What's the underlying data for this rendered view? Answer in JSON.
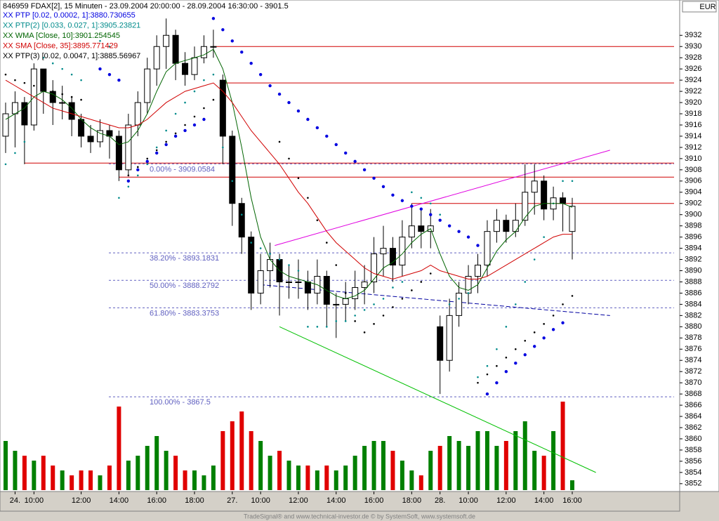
{
  "chart_data": {
    "type": "candlestick",
    "title": "846959 FDAX[2], 15 Minuten - 23.09.2004 20:00:00 - 28.09.2004 16:30:00 - 3901.5",
    "currency": "EUR",
    "footer": "TradeSignal® and www.technical-investor.de © by SystemSoft, www.systemsoft.de",
    "categories": [
      null,
      "24.",
      null,
      "10:00",
      null,
      null,
      null,
      null,
      "12:00",
      null,
      null,
      null,
      "14:00",
      null,
      null,
      null,
      "16:00",
      null,
      null,
      null,
      "18:00",
      null,
      null,
      null,
      "27.",
      null,
      null,
      "10:00",
      null,
      null,
      null,
      "12:00",
      null,
      null,
      null,
      "14:00",
      null,
      null,
      null,
      "16:00",
      null,
      null,
      null,
      "18:00",
      null,
      null,
      "28.",
      null,
      null,
      "10:00",
      null,
      null,
      null,
      "12:00",
      null,
      null,
      null,
      "14:00",
      null,
      null,
      "16:00"
    ],
    "open": [
      3914,
      3918,
      3920,
      3916,
      3926,
      3922,
      3920,
      3920,
      3917,
      3914,
      3913,
      3915,
      3914,
      3908,
      3916,
      3920,
      3926,
      3930,
      3932,
      3927,
      3925,
      3928,
      3930,
      3924,
      3914,
      3902,
      3896,
      3886,
      3890,
      3892,
      3888,
      3888,
      3888,
      3886,
      3889,
      3884,
      3884,
      3885,
      3887,
      3888,
      3893,
      3894,
      3891,
      3896,
      3898,
      3897,
      3880,
      3874,
      3882,
      3886,
      3889,
      3891,
      3897,
      3899,
      3897,
      3899,
      3904,
      3906,
      3901,
      3903,
      3897
    ],
    "high": [
      3920,
      3922,
      3921,
      3927,
      3926,
      3924,
      3923,
      3921,
      3918,
      3916,
      3917,
      3916,
      3915,
      3918,
      3922,
      3928,
      3932,
      3935,
      3933,
      3929,
      3930,
      3932,
      3933,
      3925,
      3915,
      3903,
      3897,
      3893,
      3895,
      3893,
      3891,
      3892,
      3890,
      3892,
      3890,
      3886,
      3888,
      3890,
      3891,
      3896,
      3898,
      3896,
      3899,
      3902,
      3901,
      3901,
      3882,
      3885,
      3888,
      3891,
      3893,
      3899,
      3901,
      3900,
      3902,
      3909,
      3909,
      3907,
      3905,
      3904,
      3903
    ],
    "low": [
      3911,
      3912,
      3909,
      3915,
      3918,
      3916,
      3917,
      3914,
      3912,
      3911,
      3912,
      3910,
      3906,
      3907,
      3914,
      3918,
      3923,
      3926,
      3924,
      3923,
      3924,
      3927,
      3928,
      3909,
      3898,
      3893,
      3883,
      3884,
      3887,
      3882,
      3885,
      3885,
      3883,
      3884,
      3880,
      3878,
      3881,
      3883,
      3884,
      3886,
      3889,
      3888,
      3889,
      3894,
      3894,
      3894,
      3868,
      3872,
      3880,
      3884,
      3886,
      3889,
      3895,
      3895,
      3896,
      3898,
      3900,
      3899,
      3899,
      3897,
      3892
    ],
    "close": [
      3918,
      3920,
      3916,
      3926,
      3922,
      3920,
      3920,
      3917,
      3914,
      3913,
      3915,
      3914,
      3908,
      3916,
      3920,
      3926,
      3930,
      3932,
      3927,
      3925,
      3928,
      3930,
      3930,
      3914,
      3902,
      3896,
      3886,
      3890,
      3892,
      3888,
      3888,
      3888,
      3886,
      3889,
      3884,
      3884,
      3885,
      3887,
      3888,
      3893,
      3894,
      3891,
      3896,
      3898,
      3897,
      3898,
      3874,
      3882,
      3886,
      3889,
      3891,
      3897,
      3899,
      3897,
      3899,
      3904,
      3906,
      3901,
      3903,
      3902,
      3901.5
    ],
    "up_color": "#ffffff",
    "down_color": "#000000",
    "ylim": [
      3850.6,
      3938.3
    ],
    "yticks": [
      3852,
      3854,
      3856,
      3858,
      3860,
      3862,
      3864,
      3866,
      3868,
      3870,
      3872,
      3874,
      3876,
      3878,
      3880,
      3882,
      3884,
      3886,
      3888,
      3890,
      3892,
      3894,
      3896,
      3898,
      3900,
      3902,
      3904,
      3906,
      3908,
      3910,
      3912,
      3914,
      3916,
      3918,
      3920,
      3922,
      3924,
      3926,
      3928,
      3930,
      3932
    ],
    "series": [
      {
        "name": "XX PTP [0.02, 0.0002, 1]:3880.730655",
        "color": "#0000e0",
        "style": "big-dots",
        "values": [
          null,
          null,
          null,
          null,
          null,
          null,
          null,
          null,
          null,
          null,
          3926,
          3925,
          3924,
          3906,
          3908,
          3909.5,
          3911,
          3912.5,
          3914,
          3915,
          3916,
          3917,
          3935,
          3933,
          3931,
          3929,
          3927,
          3925,
          3923,
          3921.5,
          3920,
          3918.5,
          3917,
          3915.5,
          3914,
          3912.5,
          3911,
          3909.5,
          3908,
          3906.5,
          3905,
          3903.5,
          3902.5,
          3901.5,
          3901,
          3900,
          3899,
          3898,
          3897,
          3896,
          3894.5,
          3868,
          3870,
          3872,
          3873.5,
          3875,
          3876.5,
          3878,
          3879.5,
          3880.7,
          null
        ]
      },
      {
        "name": "XX PTP(2) [0.033, 0.027, 1]:3905.23821",
        "color": "#008b8b",
        "style": "dots",
        "values": [
          3909,
          3911,
          3913,
          null,
          3928,
          3927,
          3926,
          3925,
          3924,
          null,
          3931,
          3930,
          3903,
          3905,
          3907,
          3909,
          3912,
          3915,
          3918,
          3920,
          3922,
          3924,
          3925,
          3912,
          3906,
          3900,
          3895,
          3894,
          3893,
          3892,
          3891,
          3890,
          3880,
          3880,
          3880,
          3881,
          3881,
          3882,
          3883,
          3884,
          3885,
          3887,
          3888,
          3904,
          3903,
          3902,
          3900,
          3884,
          3885,
          3886,
          3871,
          3873,
          3876,
          3880,
          3884,
          3888,
          3892,
          3896,
          3902,
          3906,
          3906
        ]
      },
      {
        "name": "XX WMA [Close, 10]:3901.254545",
        "color": "#006400",
        "style": "line",
        "values": [
          3917,
          3918,
          3919,
          3921,
          3922,
          3921.5,
          3920.5,
          3919,
          3917,
          3915.5,
          3914.5,
          3914,
          3912.5,
          3913,
          3915,
          3918,
          3922,
          3925.5,
          3927,
          3927.5,
          3928,
          3928.5,
          3929.5,
          3926,
          3920,
          3912,
          3903,
          3896,
          3892,
          3890,
          3889,
          3888.5,
          3888,
          3887.5,
          3886.5,
          3885.5,
          3885,
          3885.5,
          3886.5,
          3888.5,
          3890.5,
          3891.5,
          3893,
          3895,
          3896.5,
          3897.5,
          3893,
          3889,
          3887,
          3886.5,
          3887.5,
          3890.5,
          3893.5,
          3895.5,
          3897,
          3899.5,
          3901.5,
          3902,
          3902,
          3902,
          3901.3
        ]
      },
      {
        "name": "XX SMA [Close, 35]:3895.771429",
        "color": "#d00000",
        "style": "line",
        "values": [
          3924,
          3923,
          3922,
          3921,
          3920,
          3919,
          3918.5,
          3918,
          3917.5,
          3917,
          3916.5,
          3916,
          3915.5,
          3915.5,
          3916,
          3917,
          3918.5,
          3920,
          3921,
          3922,
          3922.5,
          3923,
          3923.5,
          3922,
          3920,
          3917.5,
          3915,
          3913,
          3911,
          3909,
          3906.5,
          3904,
          3902,
          3899.5,
          3897,
          3895,
          3893.5,
          3892,
          3890.5,
          3889.5,
          3889,
          3888.5,
          3889,
          3889.5,
          3890,
          3891,
          3890,
          3889.5,
          3889,
          3888.5,
          3888.5,
          3889,
          3890,
          3891,
          3892,
          3893,
          3894,
          3895,
          3896,
          3896.5,
          3896.5
        ]
      },
      {
        "name": "XX PTP(3) [0.02, 0.0047, 1]:3885.56967",
        "color": "#000000",
        "style": "dots",
        "values": [
          3925,
          3924,
          3923.5,
          3923,
          3922.5,
          3922,
          3921.5,
          3921,
          3920.5,
          null,
          null,
          null,
          null,
          3907,
          3908.5,
          3910,
          3911.5,
          3913,
          3914.5,
          3916,
          3917.5,
          3919,
          3920.5,
          null,
          null,
          null,
          null,
          null,
          null,
          3913,
          3910,
          3906.5,
          3903,
          3899,
          3895,
          3891,
          3886,
          3881,
          3879,
          3880.5,
          3882,
          3883.5,
          3885,
          3886.5,
          3888,
          3889.5,
          null,
          null,
          null,
          null,
          3870,
          3871.5,
          3873,
          3874.5,
          3876,
          3877.5,
          3879,
          3880.5,
          3882,
          3884,
          3885.5
        ]
      }
    ],
    "volume": {
      "lim": [
        0,
        100
      ],
      "up_color": "#008000",
      "down_color": "#e00000",
      "values": [
        50,
        40,
        35,
        30,
        35,
        25,
        20,
        15,
        20,
        20,
        15,
        25,
        85,
        30,
        35,
        45,
        55,
        40,
        35,
        20,
        20,
        15,
        25,
        60,
        70,
        80,
        60,
        50,
        35,
        40,
        30,
        25,
        25,
        20,
        25,
        20,
        25,
        35,
        45,
        50,
        50,
        40,
        30,
        20,
        15,
        40,
        45,
        55,
        50,
        45,
        60,
        60,
        45,
        50,
        60,
        70,
        40,
        35,
        60,
        90,
        10
      ]
    },
    "hlines": [
      {
        "value": 3930,
        "from": 22,
        "color": "#d00000"
      },
      {
        "value": 3923.5,
        "from": 23,
        "color": "#d00000"
      },
      {
        "value": 3909.2,
        "from": 2,
        "color": "#d00000"
      },
      {
        "value": 3906.7,
        "from": 12,
        "color": "#d00000"
      },
      {
        "value": 3902,
        "from": 43,
        "color": "#d00000"
      }
    ],
    "trendlines": [
      {
        "color": "#e000e0",
        "dashed": false,
        "points": [
          [
            28.5,
            3894.5
          ],
          [
            64,
            3911.5
          ]
        ]
      },
      {
        "color": "#00c000",
        "dashed": false,
        "points": [
          [
            29,
            3880
          ],
          [
            62.5,
            3854
          ]
        ]
      },
      {
        "color": "#0000a0",
        "dashed": true,
        "points": [
          [
            27,
            3887.5
          ],
          [
            64,
            3882
          ]
        ]
      }
    ],
    "fib_levels": [
      {
        "value": 3909.0584,
        "label": "0.00% - 3909.0584"
      },
      {
        "value": 3893.1831,
        "label": "38.20% - 3893.1831"
      },
      {
        "value": 3888.2792,
        "label": "50.00% - 3888.2792"
      },
      {
        "value": 3883.3753,
        "label": "61.80% - 3883.3753"
      },
      {
        "value": 3867.5,
        "label": "100.00% - 3867.5"
      }
    ],
    "fib_color": "#6060c0"
  }
}
